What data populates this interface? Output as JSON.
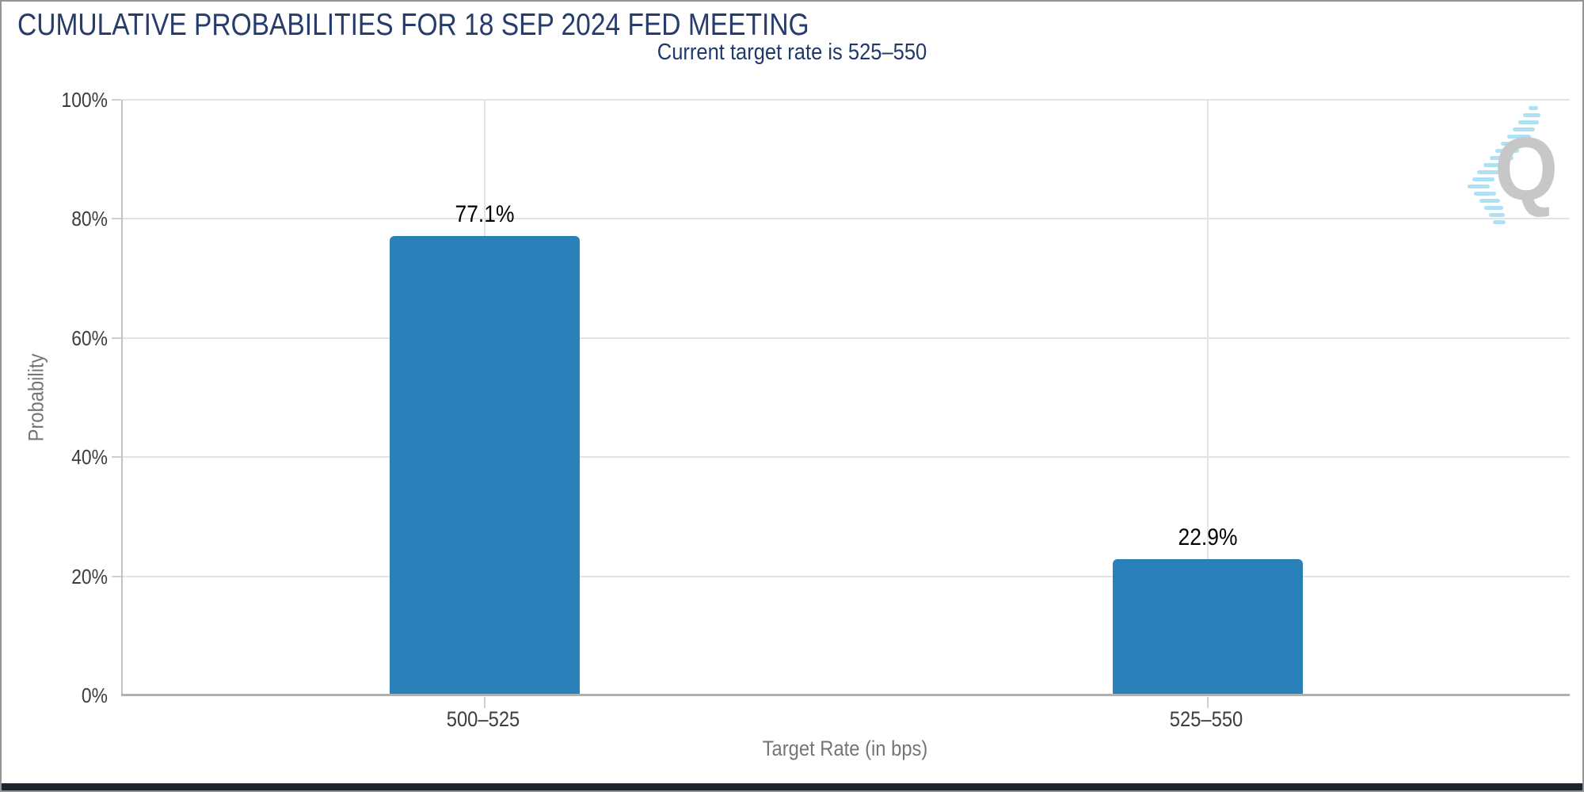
{
  "page": {
    "logo_letter": "Q"
  },
  "chart_data": {
    "type": "bar",
    "title": "CUMULATIVE PROBABILITIES FOR 18 SEP 2024 FED MEETING",
    "subtitle": "Current target rate is 525–550",
    "categories": [
      "500–525",
      "525–550"
    ],
    "values": [
      77.1,
      22.9
    ],
    "value_labels": [
      "77.1%",
      "22.9%"
    ],
    "xlabel": "Target Rate (in bps)",
    "ylabel": "Probability",
    "ylim": [
      0,
      100
    ],
    "yticks": [
      0,
      20,
      40,
      60,
      80,
      100
    ],
    "ytick_labels": [
      "0%",
      "20%",
      "40%",
      "60%",
      "80%",
      "100%"
    ],
    "grid": true,
    "legend": false,
    "bar_color": "#2A80B9"
  },
  "colors": {
    "title": "#263C6C",
    "subtitle": "#20396B",
    "bar": "#2A80B9",
    "gridline": "#E3E3E3",
    "axis_line": "#B1B1B1",
    "tick_label": "#3D3D3D",
    "axis_title": "#757575",
    "value_label": "#000000",
    "page_border": "#949494",
    "footer_bar": "#1C2430",
    "logo_q": "#C7C7C7",
    "logo_streak": "#AEE0F6"
  }
}
